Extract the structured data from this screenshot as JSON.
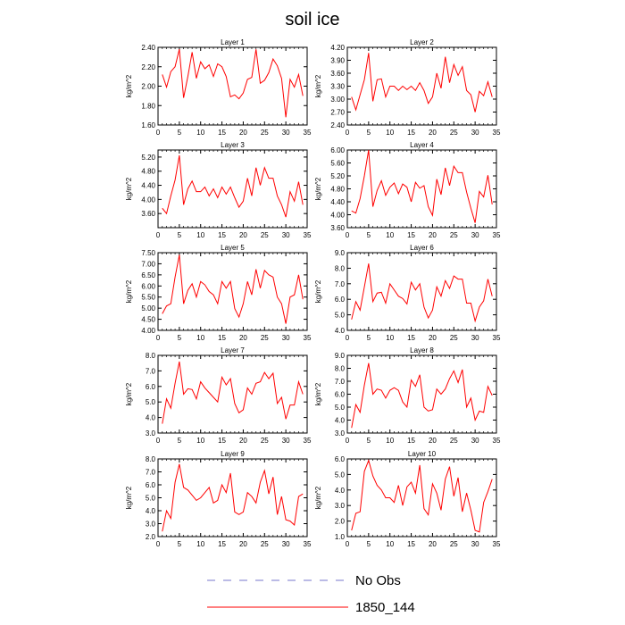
{
  "title": "soil ice",
  "chart_data": [
    {
      "type": "line",
      "title": "Layer 1",
      "ylabel": "kg/m^2",
      "xlim": [
        0,
        35
      ],
      "xticks": [
        0,
        5,
        10,
        15,
        20,
        25,
        30,
        35
      ],
      "ylim": [
        1.6,
        2.4
      ],
      "yticks": [
        "1.60",
        "1.80",
        "2.00",
        "2.20",
        "2.40"
      ],
      "x": [
        1,
        2,
        3,
        4,
        5,
        6,
        7,
        8,
        9,
        10,
        11,
        12,
        13,
        14,
        15,
        16,
        17,
        18,
        19,
        20,
        21,
        22,
        23,
        24,
        25,
        26,
        27,
        28,
        29,
        30,
        31,
        32,
        33,
        34
      ],
      "series": [
        {
          "name": "1850_144",
          "color": "#ff0000",
          "values": [
            2.12,
            1.99,
            2.15,
            2.2,
            2.38,
            1.88,
            2.1,
            2.35,
            2.08,
            2.25,
            2.18,
            2.22,
            2.1,
            2.23,
            2.2,
            2.1,
            1.89,
            1.91,
            1.87,
            1.93,
            2.07,
            2.09,
            2.38,
            2.03,
            2.06,
            2.14,
            2.28,
            2.21,
            2.08,
            1.68,
            2.07,
            1.99,
            2.12,
            1.9
          ]
        }
      ]
    },
    {
      "type": "line",
      "title": "Layer 2",
      "ylabel": "kg/m^2",
      "xlim": [
        0,
        35
      ],
      "xticks": [
        0,
        5,
        10,
        15,
        20,
        25,
        30,
        35
      ],
      "ylim": [
        2.4,
        4.2
      ],
      "yticks": [
        "2.40",
        "2.70",
        "3.00",
        "3.30",
        "3.60",
        "3.90",
        "4.20"
      ],
      "x": [
        1,
        2,
        3,
        4,
        5,
        6,
        7,
        8,
        9,
        10,
        11,
        12,
        13,
        14,
        15,
        16,
        17,
        18,
        19,
        20,
        21,
        22,
        23,
        24,
        25,
        26,
        27,
        28,
        29,
        30,
        31,
        32,
        33,
        34
      ],
      "series": [
        {
          "name": "1850_144",
          "color": "#ff0000",
          "values": [
            3.05,
            2.75,
            3.1,
            3.45,
            4.07,
            2.95,
            3.45,
            3.47,
            3.05,
            3.3,
            3.3,
            3.2,
            3.3,
            3.22,
            3.3,
            3.2,
            3.38,
            3.2,
            2.9,
            3.05,
            3.6,
            3.25,
            3.98,
            3.38,
            3.8,
            3.55,
            3.75,
            3.2,
            3.1,
            2.7,
            3.18,
            3.08,
            3.4,
            3.05
          ]
        }
      ]
    },
    {
      "type": "line",
      "title": "Layer 3",
      "ylabel": "kg/m^2",
      "xlim": [
        0,
        35
      ],
      "xticks": [
        0,
        5,
        10,
        15,
        20,
        25,
        30,
        35
      ],
      "ylim": [
        3.2,
        5.4
      ],
      "yticks": [
        "3.60",
        "4.00",
        "4.40",
        "4.80",
        "5.20"
      ],
      "x": [
        1,
        2,
        3,
        4,
        5,
        6,
        7,
        8,
        9,
        10,
        11,
        12,
        13,
        14,
        15,
        16,
        17,
        18,
        19,
        20,
        21,
        22,
        23,
        24,
        25,
        26,
        27,
        28,
        29,
        30,
        31,
        32,
        33,
        34
      ],
      "series": [
        {
          "name": "1850_144",
          "color": "#ff0000",
          "values": [
            3.75,
            3.6,
            4.1,
            4.55,
            5.25,
            3.85,
            4.3,
            4.52,
            4.22,
            4.22,
            4.35,
            4.1,
            4.3,
            4.05,
            4.35,
            4.15,
            4.35,
            4.05,
            3.78,
            3.95,
            4.6,
            4.1,
            4.9,
            4.4,
            4.9,
            4.6,
            4.6,
            4.1,
            3.85,
            3.5,
            4.22,
            3.95,
            4.5,
            3.85
          ]
        }
      ]
    },
    {
      "type": "line",
      "title": "Layer 4",
      "ylabel": "kg/m^2",
      "xlim": [
        0,
        35
      ],
      "xticks": [
        0,
        5,
        10,
        15,
        20,
        25,
        30,
        35
      ],
      "ylim": [
        3.6,
        6.0
      ],
      "yticks": [
        "3.60",
        "4.00",
        "4.40",
        "4.80",
        "5.20",
        "5.60",
        "6.00"
      ],
      "x": [
        1,
        2,
        3,
        4,
        5,
        6,
        7,
        8,
        9,
        10,
        11,
        12,
        13,
        14,
        15,
        16,
        17,
        18,
        19,
        20,
        21,
        22,
        23,
        24,
        25,
        26,
        27,
        28,
        29,
        30,
        31,
        32,
        33,
        34
      ],
      "series": [
        {
          "name": "1850_144",
          "color": "#ff0000",
          "values": [
            4.12,
            4.05,
            4.5,
            5.2,
            6.0,
            4.25,
            4.75,
            5.05,
            4.6,
            4.85,
            4.98,
            4.65,
            4.95,
            4.85,
            4.4,
            5.0,
            4.82,
            4.9,
            4.25,
            3.98,
            5.1,
            4.62,
            5.45,
            4.9,
            5.5,
            5.3,
            5.3,
            4.7,
            4.2,
            3.75,
            4.72,
            4.55,
            5.22,
            4.32
          ]
        }
      ]
    },
    {
      "type": "line",
      "title": "Layer 5",
      "ylabel": "kg/m^2",
      "xlim": [
        0,
        35
      ],
      "xticks": [
        0,
        5,
        10,
        15,
        20,
        25,
        30,
        35
      ],
      "ylim": [
        4.0,
        7.5
      ],
      "yticks": [
        "4.00",
        "4.50",
        "5.00",
        "5.50",
        "6.00",
        "6.50",
        "7.00",
        "7.50"
      ],
      "x": [
        1,
        2,
        3,
        4,
        5,
        6,
        7,
        8,
        9,
        10,
        11,
        12,
        13,
        14,
        15,
        16,
        17,
        18,
        19,
        20,
        21,
        22,
        23,
        24,
        25,
        26,
        27,
        28,
        29,
        30,
        31,
        32,
        33,
        34
      ],
      "series": [
        {
          "name": "1850_144",
          "color": "#ff0000",
          "values": [
            4.75,
            5.1,
            5.2,
            6.4,
            7.4,
            5.2,
            5.8,
            6.1,
            5.5,
            6.2,
            6.05,
            5.75,
            5.6,
            5.2,
            6.2,
            5.9,
            6.2,
            4.98,
            4.6,
            5.2,
            6.2,
            5.6,
            6.75,
            5.9,
            6.7,
            6.5,
            6.4,
            5.5,
            5.2,
            4.3,
            5.5,
            5.6,
            6.5,
            5.4
          ]
        }
      ]
    },
    {
      "type": "line",
      "title": "Layer 6",
      "ylabel": "kg/m^2",
      "xlim": [
        0,
        35
      ],
      "xticks": [
        0,
        5,
        10,
        15,
        20,
        25,
        30,
        35
      ],
      "ylim": [
        4.0,
        9.0
      ],
      "yticks": [
        "4.0",
        "5.0",
        "6.0",
        "7.0",
        "8.0",
        "9.0"
      ],
      "x": [
        1,
        2,
        3,
        4,
        5,
        6,
        7,
        8,
        9,
        10,
        11,
        12,
        13,
        14,
        15,
        16,
        17,
        18,
        19,
        20,
        21,
        22,
        23,
        24,
        25,
        26,
        27,
        28,
        29,
        30,
        31,
        32,
        33,
        34
      ],
      "series": [
        {
          "name": "1850_144",
          "color": "#ff0000",
          "values": [
            4.7,
            5.85,
            5.3,
            6.8,
            8.3,
            5.85,
            6.4,
            6.45,
            5.75,
            7.0,
            6.6,
            6.2,
            6.05,
            5.7,
            7.1,
            6.6,
            7.0,
            5.5,
            4.8,
            5.3,
            6.8,
            6.2,
            7.2,
            6.7,
            7.5,
            7.3,
            7.3,
            5.75,
            5.75,
            4.6,
            5.5,
            5.9,
            7.3,
            6.2
          ]
        }
      ]
    },
    {
      "type": "line",
      "title": "Layer 7",
      "ylabel": "kg/m^2",
      "xlim": [
        0,
        35
      ],
      "xticks": [
        0,
        5,
        10,
        15,
        20,
        25,
        30,
        35
      ],
      "ylim": [
        3.0,
        8.0
      ],
      "yticks": [
        "3.0",
        "4.0",
        "5.0",
        "6.0",
        "7.0",
        "8.0"
      ],
      "x": [
        1,
        2,
        3,
        4,
        5,
        6,
        7,
        8,
        9,
        10,
        11,
        12,
        13,
        14,
        15,
        16,
        17,
        18,
        19,
        20,
        21,
        22,
        23,
        24,
        25,
        26,
        27,
        28,
        29,
        30,
        31,
        32,
        33,
        34
      ],
      "series": [
        {
          "name": "1850_144",
          "color": "#ff0000",
          "values": [
            3.6,
            5.2,
            4.6,
            6.2,
            7.6,
            5.5,
            5.85,
            5.8,
            5.2,
            6.3,
            5.9,
            5.6,
            5.3,
            5.0,
            6.6,
            6.1,
            6.5,
            4.9,
            4.3,
            4.5,
            5.9,
            5.5,
            6.2,
            6.3,
            6.9,
            6.5,
            6.85,
            4.9,
            5.3,
            3.9,
            4.8,
            4.8,
            6.3,
            5.5
          ]
        }
      ]
    },
    {
      "type": "line",
      "title": "Layer 8",
      "ylabel": "kg/m^2",
      "xlim": [
        0,
        35
      ],
      "xticks": [
        0,
        5,
        10,
        15,
        20,
        25,
        30,
        35
      ],
      "ylim": [
        3.0,
        9.0
      ],
      "yticks": [
        "3.0",
        "4.0",
        "5.0",
        "6.0",
        "7.0",
        "8.0",
        "9.0"
      ],
      "x": [
        1,
        2,
        3,
        4,
        5,
        6,
        7,
        8,
        9,
        10,
        11,
        12,
        13,
        14,
        15,
        16,
        17,
        18,
        19,
        20,
        21,
        22,
        23,
        24,
        25,
        26,
        27,
        28,
        29,
        30,
        31,
        32,
        33,
        34
      ],
      "series": [
        {
          "name": "1850_144",
          "color": "#ff0000",
          "values": [
            3.4,
            5.2,
            4.6,
            6.7,
            8.4,
            6.0,
            6.4,
            6.3,
            5.7,
            6.3,
            6.5,
            6.3,
            5.4,
            5.0,
            7.1,
            6.6,
            7.5,
            5.0,
            4.7,
            4.8,
            6.4,
            6.0,
            6.4,
            7.2,
            7.8,
            6.9,
            7.9,
            5.0,
            5.7,
            4.0,
            4.7,
            4.6,
            6.6,
            5.9
          ]
        }
      ]
    },
    {
      "type": "line",
      "title": "Layer 9",
      "ylabel": "kg/m^2",
      "xlim": [
        0,
        35
      ],
      "xticks": [
        0,
        5,
        10,
        15,
        20,
        25,
        30,
        35
      ],
      "ylim": [
        2.0,
        8.0
      ],
      "yticks": [
        "2.0",
        "3.0",
        "4.0",
        "5.0",
        "6.0",
        "7.0",
        "8.0"
      ],
      "x": [
        1,
        2,
        3,
        4,
        5,
        6,
        7,
        8,
        9,
        10,
        11,
        12,
        13,
        14,
        15,
        16,
        17,
        18,
        19,
        20,
        21,
        22,
        23,
        24,
        25,
        26,
        27,
        28,
        29,
        30,
        31,
        32,
        33,
        34
      ],
      "series": [
        {
          "name": "1850_144",
          "color": "#ff0000",
          "values": [
            2.4,
            4.0,
            3.4,
            6.2,
            7.6,
            5.8,
            5.6,
            5.2,
            4.8,
            5.0,
            5.4,
            5.8,
            4.6,
            4.8,
            6.0,
            5.4,
            6.9,
            3.9,
            3.7,
            3.9,
            5.4,
            5.1,
            4.6,
            6.2,
            7.1,
            5.3,
            6.6,
            3.7,
            5.1,
            3.3,
            3.2,
            2.9,
            5.1,
            5.3
          ]
        }
      ]
    },
    {
      "type": "line",
      "title": "Layer 10",
      "ylabel": "kg/m^2",
      "xlim": [
        0,
        35
      ],
      "xticks": [
        0,
        5,
        10,
        15,
        20,
        25,
        30,
        35
      ],
      "ylim": [
        1.0,
        6.0
      ],
      "yticks": [
        "1.0",
        "2.0",
        "3.0",
        "4.0",
        "5.0",
        "6.0"
      ],
      "x": [
        1,
        2,
        3,
        4,
        5,
        6,
        7,
        8,
        9,
        10,
        11,
        12,
        13,
        14,
        15,
        16,
        17,
        18,
        19,
        20,
        21,
        22,
        23,
        24,
        25,
        26,
        27,
        28,
        29,
        30,
        31,
        32,
        33,
        34
      ],
      "series": [
        {
          "name": "1850_144",
          "color": "#ff0000",
          "values": [
            1.4,
            2.5,
            2.6,
            5.2,
            5.9,
            4.9,
            4.3,
            4.0,
            3.5,
            3.5,
            3.2,
            4.3,
            3.0,
            4.2,
            4.5,
            3.8,
            5.6,
            2.8,
            2.4,
            4.4,
            3.8,
            2.7,
            4.7,
            5.5,
            3.6,
            4.8,
            2.6,
            3.8,
            2.7,
            1.4,
            1.3,
            3.2,
            3.9,
            4.7
          ]
        }
      ]
    }
  ],
  "legend": {
    "items": [
      {
        "label": "No Obs",
        "style": "dashed",
        "color": "#7777cc"
      },
      {
        "label": "1850_144",
        "style": "solid",
        "color": "#ff0000"
      }
    ]
  }
}
